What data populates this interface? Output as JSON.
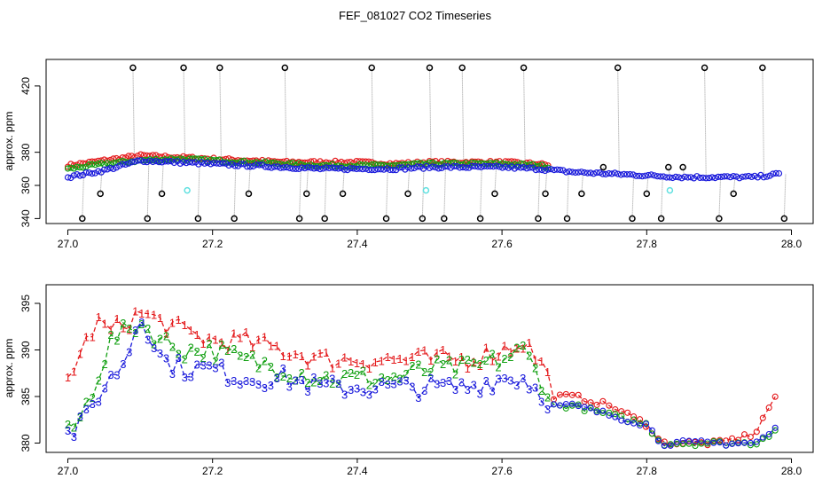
{
  "title": "FEF_081027  CO2 Timeseries",
  "colors": {
    "s1": "#e41a1c",
    "s2": "#12a012",
    "s3": "#1a1adb",
    "black": "#000000",
    "cyan": "#5fe0e0",
    "gray": "#888888"
  },
  "chart_data": [
    {
      "type": "scatter",
      "panel": "top",
      "ylabel": "approx. ppm",
      "xlabel": "",
      "xlim": [
        26.97,
        28.03
      ],
      "ylim": [
        337,
        436
      ],
      "xticks": [
        "27.0",
        "27.2",
        "27.4",
        "27.6",
        "27.8",
        "28.0"
      ],
      "yticks": [
        "340",
        "360",
        "380",
        "420"
      ],
      "series": [
        {
          "name": "s1",
          "color": "#e41a1c",
          "x": [
            27.0,
            27.05,
            27.1,
            27.15,
            27.2,
            27.25,
            27.3,
            27.35,
            27.4,
            27.45,
            27.5,
            27.55,
            27.6,
            27.65,
            27.7,
            27.75,
            27.8,
            27.85,
            27.9,
            27.95,
            27.985
          ],
          "y": [
            372,
            375,
            378,
            377,
            376,
            375,
            374,
            374,
            374,
            373,
            374,
            374,
            374,
            373,
            370,
            369,
            367,
            366,
            366,
            366,
            368
          ]
        },
        {
          "name": "s2",
          "color": "#12a012",
          "x": [
            27.0,
            27.05,
            27.1,
            27.15,
            27.2,
            27.25,
            27.3,
            27.35,
            27.4,
            27.45,
            27.5,
            27.55,
            27.6,
            27.65,
            27.7,
            27.75,
            27.8,
            27.85,
            27.9,
            27.95,
            27.985
          ],
          "y": [
            370,
            373,
            375,
            376,
            375,
            374,
            373,
            372,
            372,
            372,
            373,
            373,
            373,
            372,
            369,
            368,
            366,
            365,
            365,
            365,
            367
          ]
        },
        {
          "name": "s3",
          "color": "#1a1adb",
          "x": [
            27.0,
            27.05,
            27.1,
            27.15,
            27.2,
            27.25,
            27.3,
            27.35,
            27.4,
            27.45,
            27.5,
            27.55,
            27.6,
            27.65,
            27.7,
            27.75,
            27.8,
            27.85,
            27.9,
            27.95,
            27.985
          ],
          "y": [
            365,
            369,
            375,
            374,
            373,
            372,
            371,
            370,
            370,
            370,
            371,
            371,
            371,
            370,
            368,
            367,
            366,
            365,
            365,
            365,
            367
          ]
        },
        {
          "name": "outliers",
          "color": "#000000",
          "x": [
            27.02,
            27.045,
            27.09,
            27.11,
            27.13,
            27.16,
            27.18,
            27.21,
            27.23,
            27.25,
            27.3,
            27.32,
            27.33,
            27.355,
            27.38,
            27.42,
            27.44,
            27.47,
            27.49,
            27.5,
            27.52,
            27.545,
            27.57,
            27.59,
            27.63,
            27.65,
            27.66,
            27.69,
            27.71,
            27.74,
            27.76,
            27.78,
            27.8,
            27.82,
            27.83,
            27.85,
            27.88,
            27.9,
            27.92,
            27.96,
            27.99
          ],
          "y": [
            340,
            355,
            431,
            340,
            355,
            431,
            340,
            431,
            340,
            355,
            431,
            340,
            355,
            340,
            355,
            431,
            340,
            355,
            340,
            431,
            340,
            431,
            340,
            355,
            431,
            340,
            355,
            340,
            355,
            371,
            431,
            340,
            355,
            340,
            371,
            371,
            431,
            340,
            355,
            431,
            340
          ]
        },
        {
          "name": "flagged",
          "color": "#5fe0e0",
          "x": [
            27.165,
            27.495,
            27.832
          ],
          "y": [
            357,
            357,
            357
          ]
        }
      ]
    },
    {
      "type": "line",
      "panel": "bottom",
      "ylabel": "approx. ppm",
      "xlabel": "",
      "xlim": [
        26.97,
        28.03
      ],
      "ylim": [
        379,
        397
      ],
      "xticks": [
        "27.0",
        "27.2",
        "27.4",
        "27.6",
        "27.8",
        "28.0"
      ],
      "yticks": [
        "380",
        "385",
        "390",
        "395"
      ],
      "series": [
        {
          "name": "1",
          "marker": "1",
          "color": "#e41a1c",
          "x": [
            27.0,
            27.02,
            27.04,
            27.06,
            27.08,
            27.1,
            27.13,
            27.16,
            27.2,
            27.24,
            27.3,
            27.35,
            27.4,
            27.45,
            27.5,
            27.55,
            27.6,
            27.63,
            27.66,
            27.67,
            27.7,
            27.75,
            27.8,
            27.82,
            27.85,
            27.9,
            27.95,
            27.97,
            27.985
          ],
          "y": [
            387,
            390,
            393,
            392,
            393,
            394,
            393,
            392,
            391,
            391,
            390,
            389,
            389,
            389,
            389,
            389,
            390,
            391,
            388,
            385,
            385,
            384,
            382,
            380,
            380,
            380,
            381,
            384,
            386
          ]
        },
        {
          "name": "2",
          "marker": "2",
          "color": "#12a012",
          "x": [
            27.0,
            27.02,
            27.04,
            27.06,
            27.08,
            27.1,
            27.13,
            27.16,
            27.2,
            27.24,
            27.3,
            27.35,
            27.4,
            27.45,
            27.5,
            27.55,
            27.6,
            27.63,
            27.66,
            27.67,
            27.7,
            27.75,
            27.8,
            27.82,
            27.85,
            27.9,
            27.95,
            27.97,
            27.985
          ],
          "y": [
            381,
            383,
            387,
            391,
            392,
            393,
            391,
            390,
            390,
            389,
            388,
            387,
            387,
            387,
            388,
            388,
            389,
            390,
            386,
            384,
            384,
            383,
            382,
            380,
            380,
            380,
            380,
            381,
            382
          ]
        },
        {
          "name": "3",
          "marker": "3",
          "color": "#1a1adb",
          "x": [
            27.0,
            27.02,
            27.04,
            27.06,
            27.08,
            27.1,
            27.13,
            27.16,
            27.2,
            27.24,
            27.3,
            27.35,
            27.4,
            27.45,
            27.5,
            27.55,
            27.6,
            27.63,
            27.66,
            27.67,
            27.7,
            27.75,
            27.8,
            27.82,
            27.85,
            27.9,
            27.95,
            27.97,
            27.985
          ],
          "y": [
            381,
            382,
            385,
            387,
            389,
            394,
            389,
            388,
            388,
            387,
            387,
            386,
            386,
            386,
            386,
            386,
            387,
            387,
            385,
            384,
            384,
            383,
            382,
            380,
            380,
            380,
            380,
            381,
            382
          ]
        }
      ]
    }
  ]
}
